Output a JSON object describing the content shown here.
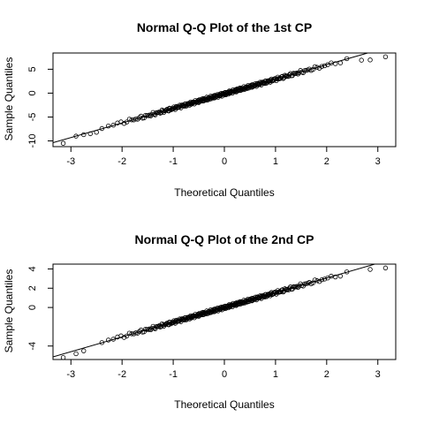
{
  "chart_data": [
    {
      "type": "scatter",
      "title": "Normal Q-Q Plot of the 1st CP",
      "xlabel": "Theoretical Quantiles",
      "ylabel": "Sample Quantiles",
      "xlim": [
        -3.35,
        3.35
      ],
      "ylim": [
        -11.2,
        8.4
      ],
      "x_ticks": [
        -3,
        -2,
        -1,
        0,
        1,
        2,
        3
      ],
      "y_ticks": [
        -10,
        -5,
        0,
        5
      ],
      "grid": false,
      "reference_line": {
        "intercept": -0.15,
        "slope": 3.05
      },
      "n_points": 300,
      "distribution": "normal",
      "sample_sd": 3.0,
      "outliers": [
        {
          "x": -3.15,
          "y": -10.5
        },
        {
          "x": -2.9,
          "y": -9.0
        },
        {
          "x": -2.75,
          "y": -8.7
        },
        {
          "x": -2.62,
          "y": -8.5
        },
        {
          "x": -2.5,
          "y": -8.2
        },
        {
          "x": 2.68,
          "y": 6.9
        },
        {
          "x": 2.85,
          "y": 6.95
        },
        {
          "x": 3.15,
          "y": 7.6
        }
      ]
    },
    {
      "type": "scatter",
      "title": "Normal Q-Q Plot of the 2nd CP",
      "xlabel": "Theoretical Quantiles",
      "ylabel": "Sample Quantiles",
      "xlim": [
        -3.35,
        3.35
      ],
      "ylim": [
        -5.4,
        4.5
      ],
      "x_ticks": [
        -3,
        -2,
        -1,
        0,
        1,
        2,
        3
      ],
      "y_ticks": [
        -4,
        0,
        2,
        4
      ],
      "grid": false,
      "reference_line": {
        "intercept": 0.0,
        "slope": 1.53
      },
      "n_points": 300,
      "distribution": "normal",
      "sample_sd": 1.5,
      "outliers": [
        {
          "x": -3.15,
          "y": -5.2
        },
        {
          "x": -2.9,
          "y": -4.8
        },
        {
          "x": -2.75,
          "y": -4.5
        },
        {
          "x": 2.85,
          "y": 3.95
        },
        {
          "x": 3.15,
          "y": 4.1
        }
      ]
    }
  ]
}
